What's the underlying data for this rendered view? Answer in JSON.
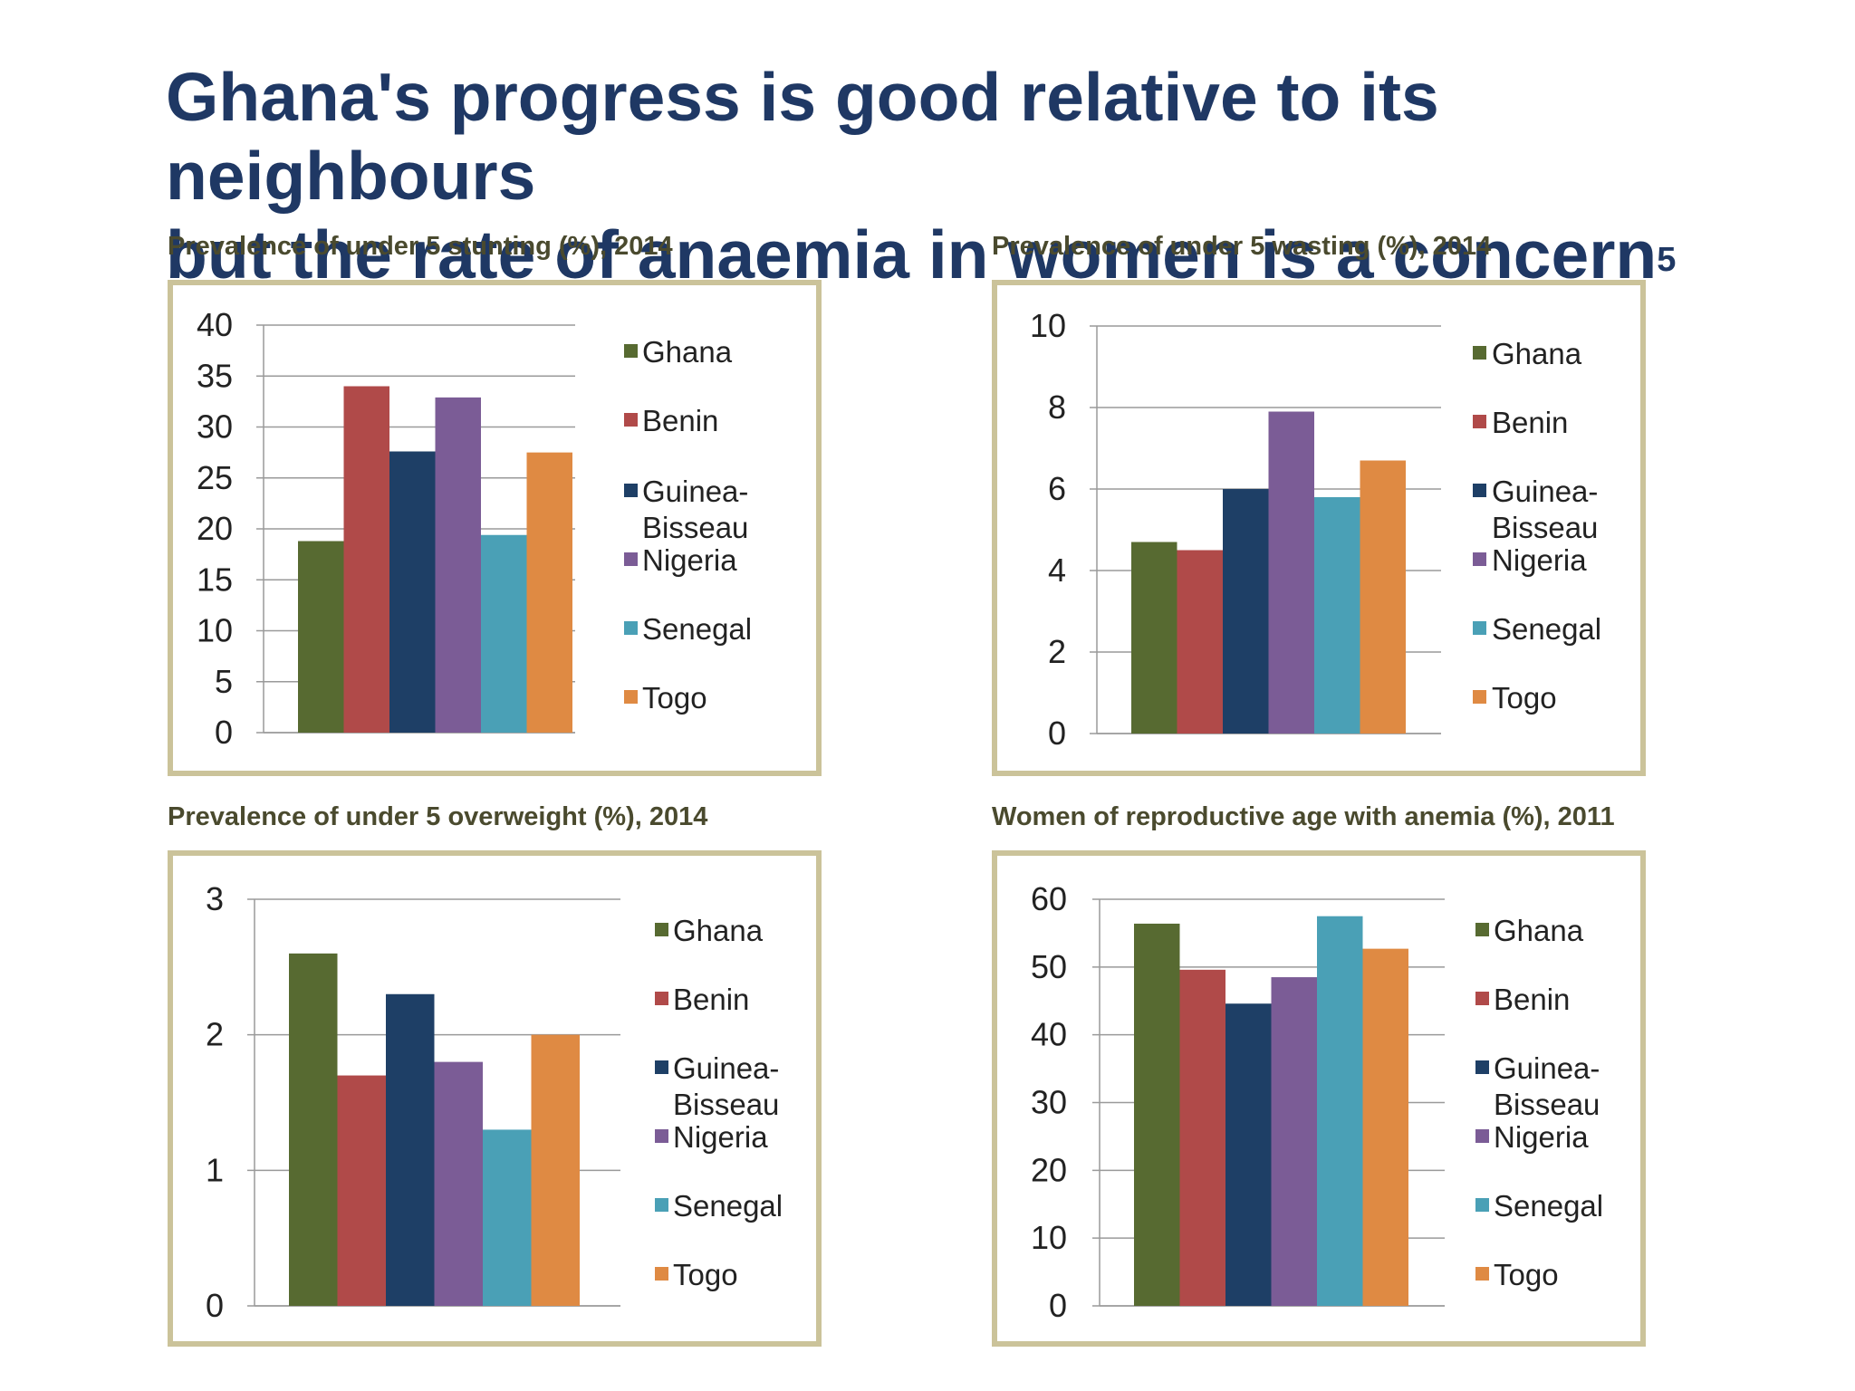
{
  "slide": {
    "title_line1": "Ghana's progress is good relative to its neighbours",
    "title_line2": "but the rate of anaemia in women is a concern",
    "title_footnote": "5"
  },
  "colors": {
    "Ghana": "#576a31",
    "Benin": "#b04a49",
    "Guinea-Bissau": "#1e3f66",
    "Nigeria": "#7b5c96",
    "Senegal": "#4aa0b6",
    "Togo": "#df8a43",
    "gridline": "#9a9a9a",
    "frame": "#cbc39a"
  },
  "chart_data": [
    {
      "type": "bar",
      "title": "Prevalence of under 5 stunting (%), 2014",
      "categories": [
        "Ghana",
        "Benin",
        "Guinea-Bissau",
        "Nigeria",
        "Senegal",
        "Togo"
      ],
      "legend_labels": [
        [
          "Ghana"
        ],
        [
          "Benin"
        ],
        [
          "Guinea-",
          "Bisseau"
        ],
        [
          "Nigeria"
        ],
        [
          "Senegal"
        ],
        [
          "Togo"
        ]
      ],
      "values": [
        18.8,
        34.0,
        27.6,
        32.9,
        19.4,
        27.5
      ],
      "ylim": [
        0,
        40
      ],
      "yticks": [
        0,
        5,
        10,
        15,
        20,
        25,
        30,
        35,
        40
      ],
      "grid": true,
      "legend": "right"
    },
    {
      "type": "bar",
      "title": "Prevalence of under 5 wasting (%), 2014",
      "categories": [
        "Ghana",
        "Benin",
        "Guinea-Bissau",
        "Nigeria",
        "Senegal",
        "Togo"
      ],
      "legend_labels": [
        [
          "Ghana"
        ],
        [
          "Benin"
        ],
        [
          "Guinea-",
          "Bisseau"
        ],
        [
          "Nigeria"
        ],
        [
          "Senegal"
        ],
        [
          "Togo"
        ]
      ],
      "values": [
        4.7,
        4.5,
        6.0,
        7.9,
        5.8,
        6.7
      ],
      "ylim": [
        0,
        10
      ],
      "yticks": [
        0,
        2,
        4,
        6,
        8,
        10
      ],
      "grid": true,
      "legend": "right"
    },
    {
      "type": "bar",
      "title": "Prevalence of under 5 overweight (%), 2014",
      "categories": [
        "Ghana",
        "Benin",
        "Guinea-Bissau",
        "Nigeria",
        "Senegal",
        "Togo"
      ],
      "legend_labels": [
        [
          "Ghana"
        ],
        [
          "Benin"
        ],
        [
          "Guinea-",
          "Bisseau"
        ],
        [
          "Nigeria"
        ],
        [
          "Senegal"
        ],
        [
          "Togo"
        ]
      ],
      "values": [
        2.6,
        1.7,
        2.3,
        1.8,
        1.3,
        2.0
      ],
      "ylim": [
        0,
        3
      ],
      "yticks": [
        0,
        1,
        2,
        3
      ],
      "grid": true,
      "legend": "right"
    },
    {
      "type": "bar",
      "title": "Women of reproductive age with anemia (%), 2011",
      "categories": [
        "Ghana",
        "Benin",
        "Guinea-Bissau",
        "Nigeria",
        "Senegal",
        "Togo"
      ],
      "legend_labels": [
        [
          "Ghana"
        ],
        [
          "Benin"
        ],
        [
          "Guinea-",
          "Bisseau"
        ],
        [
          "Nigeria"
        ],
        [
          "Senegal"
        ],
        [
          "Togo"
        ]
      ],
      "values": [
        56.4,
        49.6,
        44.6,
        48.5,
        57.5,
        52.7
      ],
      "ylim": [
        0,
        60
      ],
      "yticks": [
        0,
        10,
        20,
        30,
        40,
        50,
        60
      ],
      "grid": true,
      "legend": "right"
    }
  ]
}
